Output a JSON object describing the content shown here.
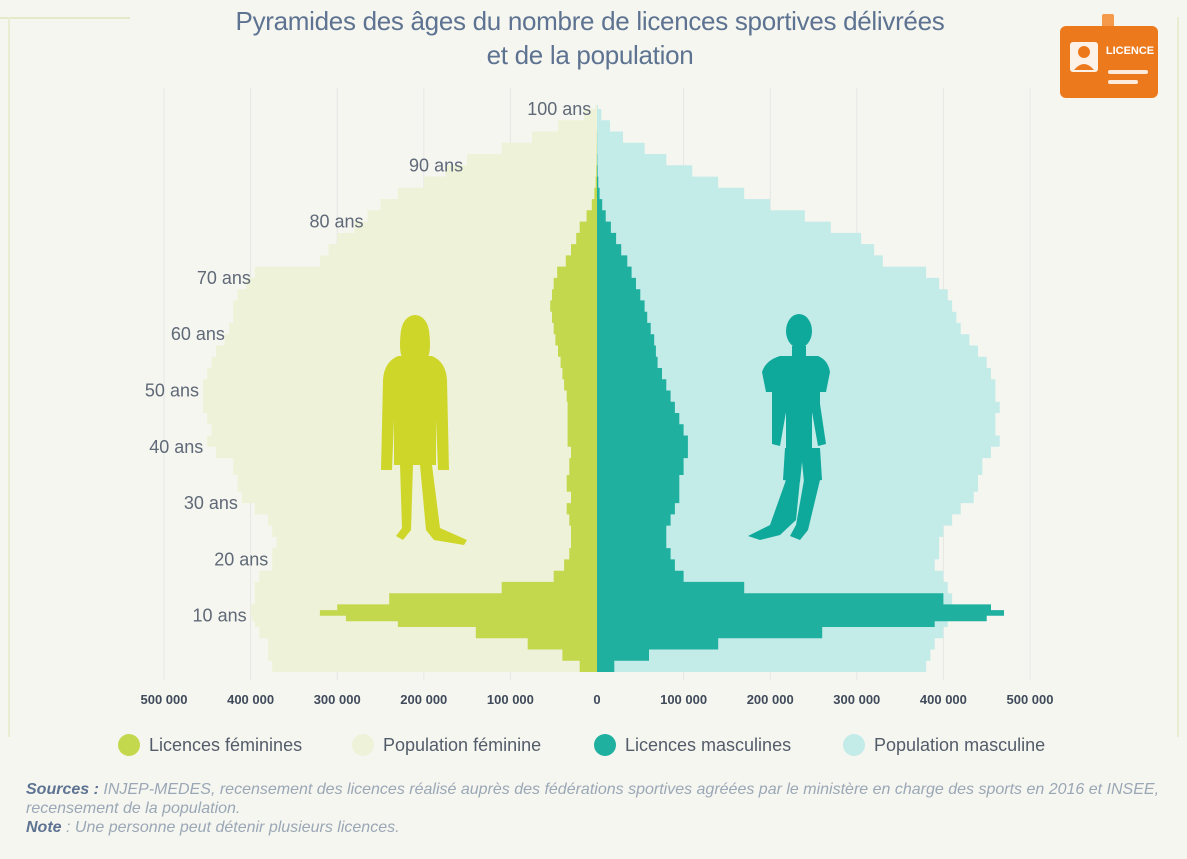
{
  "title_line1": "Pyramides des âges du nombre de licences sportives délivrées",
  "title_line2": "et de la population",
  "badge": {
    "label": "LICENCE",
    "icon": "licence-card-icon",
    "color": "#ec7a1d"
  },
  "colors": {
    "licences_feminines": "#c3d84d",
    "population_feminine": "#eef2d8",
    "licences_masculines": "#1fb0a0",
    "population_masculine": "#c3ebe7",
    "silhouette_female": "#cfd62a",
    "silhouette_male": "#0fa99c",
    "grid": "#e6e6e6",
    "age_label": "#5f6977",
    "axis_label": "#3f4a5a"
  },
  "legend": [
    {
      "label": "Licences féminines",
      "color": "#c3d84d"
    },
    {
      "label": "Population féminine",
      "color": "#eef2d8"
    },
    {
      "label": "Licences masculines",
      "color": "#1fb0a0"
    },
    {
      "label": "Population masculine",
      "color": "#c3ebe7"
    }
  ],
  "notes": {
    "sources_label": "Sources :",
    "sources_text": "INJEP-MEDES, recensement des licences réalisé auprès des fédérations sportives agréées par le ministère en charge des sports en 2016 et INSEE, recensement de la population.",
    "note_label": "Note",
    "note_text": " : Une personne peut détenir plusieurs licences."
  },
  "chart_data": {
    "type": "area",
    "orientation": "horizontal-pyramid",
    "x_ticks": [
      "500 000",
      "400 000",
      "300 000",
      "200 000",
      "100 000",
      "0",
      "100 000",
      "200 000",
      "300 000",
      "400 000",
      "500 000"
    ],
    "x_tick_values": [
      -500000,
      -400000,
      -300000,
      -200000,
      -100000,
      0,
      100000,
      200000,
      300000,
      400000,
      500000
    ],
    "xlim": [
      -500000,
      500000
    ],
    "ylim": [
      0,
      100
    ],
    "age_labels": [
      {
        "age": 10,
        "label": "10 ans"
      },
      {
        "age": 20,
        "label": "20 ans"
      },
      {
        "age": 30,
        "label": "30 ans"
      },
      {
        "age": 40,
        "label": "40 ans"
      },
      {
        "age": 50,
        "label": "50 ans"
      },
      {
        "age": 60,
        "label": "60 ans"
      },
      {
        "age": 70,
        "label": "70 ans"
      },
      {
        "age": 80,
        "label": "80 ans"
      },
      {
        "age": 90,
        "label": "90 ans"
      },
      {
        "age": 100,
        "label": "100 ans"
      }
    ],
    "ages": [
      0,
      2,
      4,
      6,
      8,
      9,
      10,
      11,
      12,
      14,
      16,
      18,
      20,
      22,
      24,
      26,
      28,
      30,
      32,
      35,
      38,
      40,
      42,
      44,
      46,
      48,
      50,
      52,
      54,
      56,
      58,
      60,
      62,
      64,
      66,
      68,
      70,
      72,
      74,
      76,
      78,
      80,
      82,
      84,
      86,
      88,
      90,
      92,
      94,
      96,
      98,
      100
    ],
    "series": [
      {
        "name": "Population féminine",
        "side": "left",
        "values": [
          375000,
          380000,
          380000,
          390000,
          395000,
          398000,
          400000,
          400000,
          395000,
          395000,
          390000,
          375000,
          375000,
          370000,
          375000,
          380000,
          395000,
          410000,
          415000,
          420000,
          440000,
          450000,
          445000,
          450000,
          455000,
          455000,
          455000,
          450000,
          445000,
          440000,
          430000,
          425000,
          420000,
          420000,
          415000,
          405000,
          395000,
          320000,
          310000,
          300000,
          280000,
          265000,
          250000,
          230000,
          200000,
          175000,
          150000,
          110000,
          75000,
          45000,
          15000,
          2000
        ]
      },
      {
        "name": "Licences féminines",
        "side": "left",
        "values": [
          20000,
          40000,
          80000,
          140000,
          230000,
          290000,
          320000,
          300000,
          240000,
          110000,
          50000,
          38000,
          32000,
          30000,
          30000,
          32000,
          35000,
          30000,
          35000,
          32000,
          30000,
          34000,
          34000,
          34000,
          34000,
          35000,
          38000,
          40000,
          42000,
          45000,
          48000,
          50000,
          52000,
          54000,
          52000,
          50000,
          46000,
          36000,
          30000,
          24000,
          20000,
          12000,
          6000,
          3000,
          1500,
          800,
          400,
          200,
          100,
          50,
          20,
          0
        ]
      },
      {
        "name": "Licences masculines",
        "side": "right",
        "values": [
          20000,
          60000,
          140000,
          260000,
          390000,
          450000,
          470000,
          455000,
          400000,
          170000,
          100000,
          90000,
          85000,
          80000,
          80000,
          85000,
          90000,
          95000,
          95000,
          100000,
          105000,
          105000,
          100000,
          95000,
          90000,
          85000,
          80000,
          75000,
          70000,
          68000,
          66000,
          62000,
          58000,
          55000,
          50000,
          45000,
          40000,
          35000,
          28000,
          22000,
          16000,
          10000,
          6000,
          3000,
          1500,
          700,
          300,
          150,
          80,
          40,
          15,
          0
        ]
      },
      {
        "name": "Population masculine",
        "side": "right",
        "values": [
          380000,
          385000,
          390000,
          400000,
          405000,
          410000,
          415000,
          415000,
          410000,
          405000,
          400000,
          390000,
          395000,
          395000,
          400000,
          410000,
          420000,
          435000,
          440000,
          445000,
          455000,
          465000,
          460000,
          460000,
          465000,
          460000,
          460000,
          455000,
          450000,
          440000,
          430000,
          420000,
          415000,
          410000,
          405000,
          395000,
          380000,
          330000,
          320000,
          305000,
          270000,
          240000,
          200000,
          170000,
          140000,
          110000,
          80000,
          55000,
          30000,
          15000,
          5000,
          1000
        ]
      }
    ]
  }
}
